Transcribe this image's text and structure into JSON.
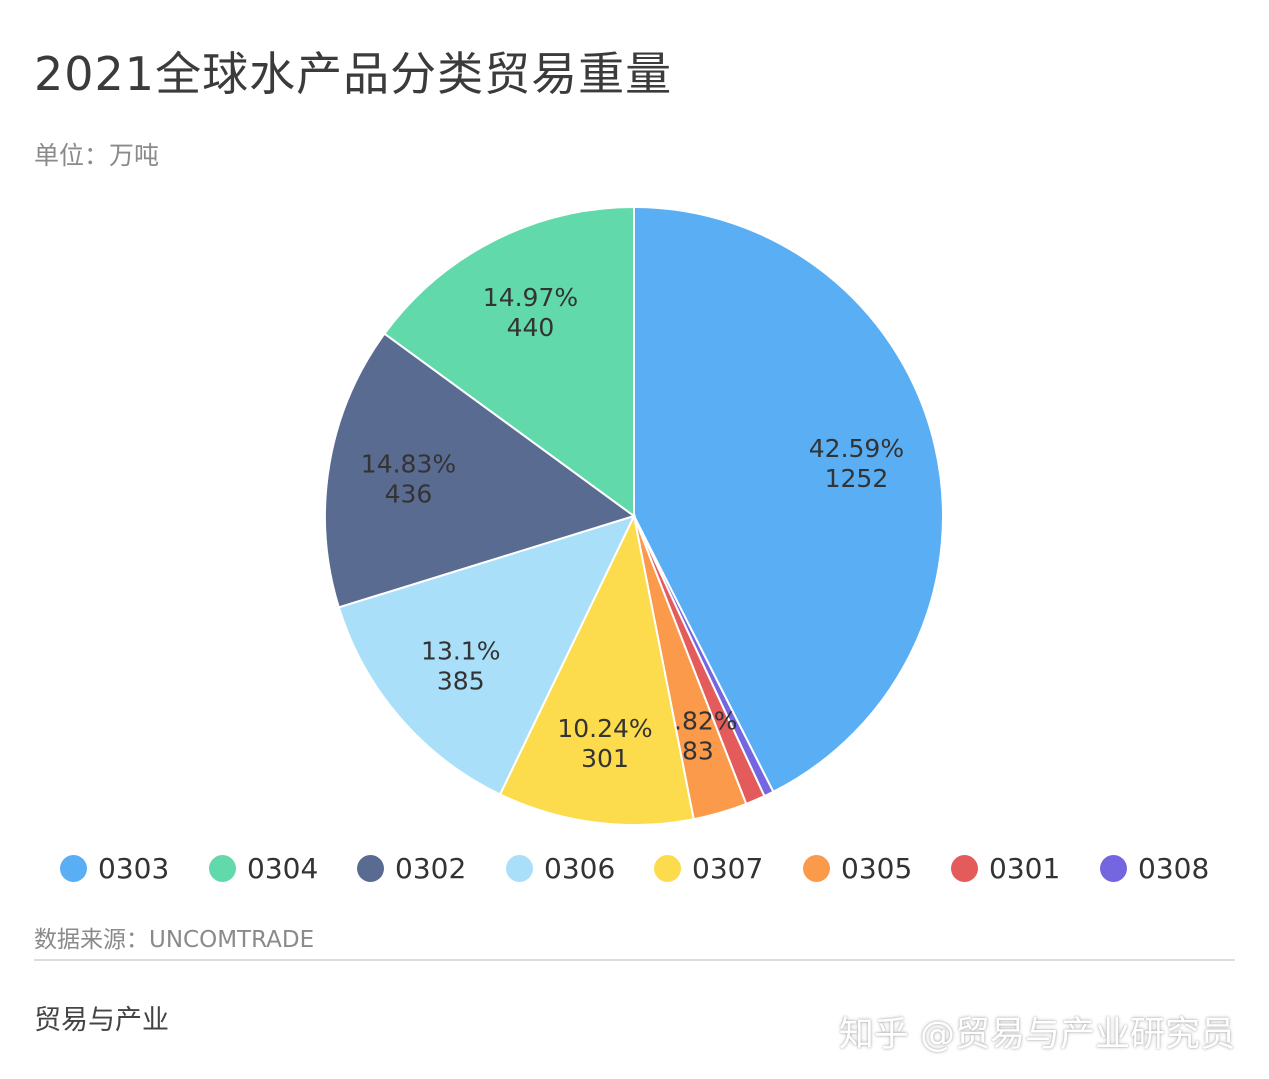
{
  "header": {
    "title": "2021全球水产品分类贸易重量",
    "unit": "单位：万吨"
  },
  "chart_data": {
    "type": "pie",
    "title": "2021全球水产品分类贸易重量",
    "unit": "万吨",
    "slices": [
      {
        "name": "0303",
        "value": 1252,
        "percent_label": "42.59%",
        "value_label": "1252",
        "color": "#5aaef4"
      },
      {
        "name": "0308",
        "value": 15,
        "percent_label": "",
        "value_label": "",
        "color": "#7466e0"
      },
      {
        "name": "0301",
        "value": 30,
        "percent_label": "",
        "value_label": "",
        "color": "#e45b5b"
      },
      {
        "name": "0305",
        "value": 83,
        "percent_label": "2.82%",
        "value_label": "83",
        "color": "#fb9a4b"
      },
      {
        "name": "0307",
        "value": 301,
        "percent_label": "10.24%",
        "value_label": "301",
        "color": "#fcdb4c"
      },
      {
        "name": "0306",
        "value": 385,
        "percent_label": "13.1%",
        "value_label": "385",
        "color": "#aadff9"
      },
      {
        "name": "0302",
        "value": 436,
        "percent_label": "14.83%",
        "value_label": "436",
        "color": "#5a6b91"
      },
      {
        "name": "0304",
        "value": 440,
        "percent_label": "14.97%",
        "value_label": "440",
        "color": "#62d9aa"
      }
    ],
    "legend_position": "bottom"
  },
  "legend": [
    {
      "label": "0303",
      "color": "#5aaef4"
    },
    {
      "label": "0304",
      "color": "#62d9aa"
    },
    {
      "label": "0302",
      "color": "#5a6b91"
    },
    {
      "label": "0306",
      "color": "#aadff9"
    },
    {
      "label": "0307",
      "color": "#fcdb4c"
    },
    {
      "label": "0305",
      "color": "#fb9a4b"
    },
    {
      "label": "0301",
      "color": "#e45b5b"
    },
    {
      "label": "0308",
      "color": "#7466e0"
    }
  ],
  "footer": {
    "source": "数据来源：UNCOMTRADE",
    "brand": "贸易与产业",
    "watermark": "知乎 @贸易与产业研究员"
  }
}
